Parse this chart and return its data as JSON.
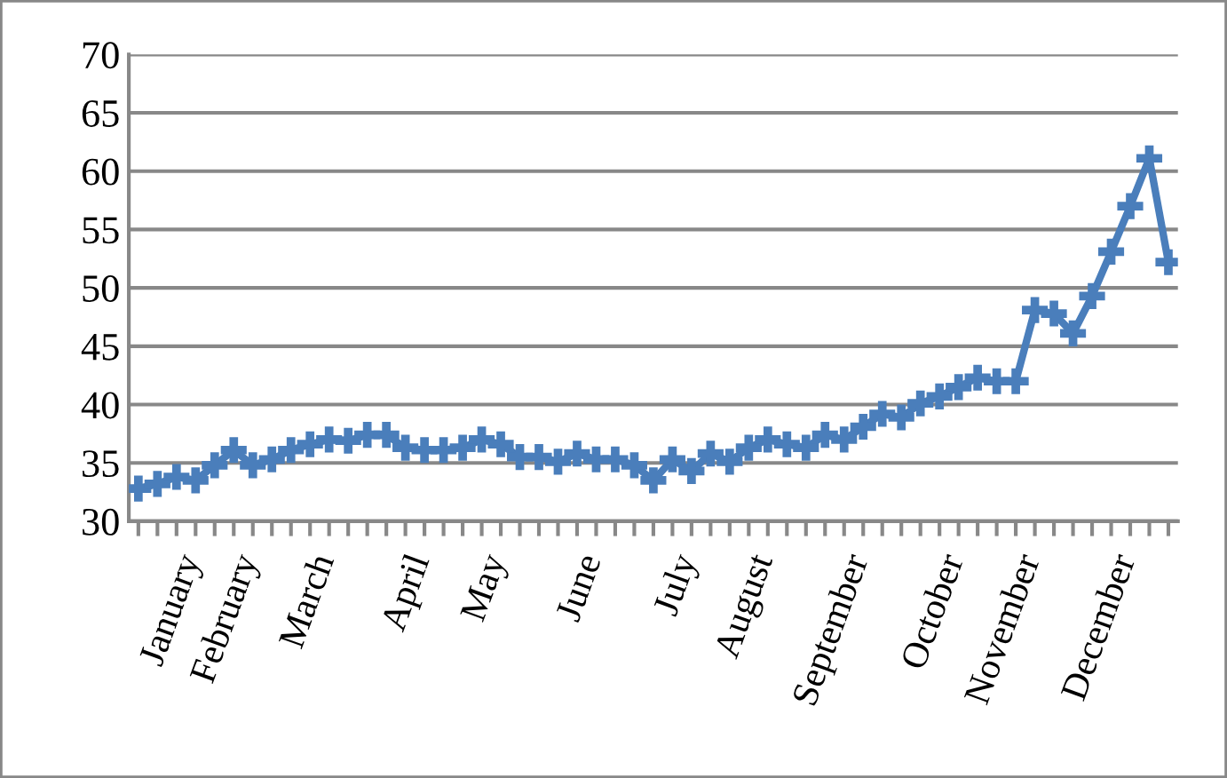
{
  "chart_data": {
    "type": "line",
    "categories": [
      null,
      null,
      "January",
      null,
      null,
      "February",
      null,
      null,
      null,
      "March",
      null,
      null,
      null,
      null,
      "April",
      null,
      null,
      null,
      "May",
      null,
      null,
      null,
      null,
      "June",
      null,
      null,
      null,
      null,
      "July",
      null,
      null,
      null,
      "August",
      null,
      null,
      null,
      null,
      "September",
      null,
      null,
      null,
      null,
      "October",
      null,
      null,
      null,
      "November",
      null,
      null,
      null,
      null,
      "December",
      null,
      null,
      null
    ],
    "series": [
      {
        "color": "#4a7ebb",
        "values": [
          32.8,
          33.2,
          33.8,
          33.5,
          34.8,
          36.1,
          34.8,
          35.3,
          36.1,
          36.6,
          37,
          36.9,
          37.4,
          37.4,
          36.3,
          36.1,
          36.1,
          36.3,
          37,
          36.6,
          35.5,
          35.5,
          35.1,
          35.8,
          35.3,
          35.3,
          34.8,
          33.5,
          35.3,
          34.3,
          35.8,
          35.1,
          36.3,
          37,
          36.6,
          36.3,
          37.4,
          37,
          38.1,
          39.2,
          38.9,
          40.1,
          40.7,
          41.5,
          42.3,
          42,
          42,
          48.1,
          47.8,
          46.1,
          49.3,
          53.1,
          57,
          61.1,
          52.2
        ]
      }
    ],
    "ylim": [
      30,
      70
    ],
    "yticks": [
      30,
      35,
      40,
      45,
      50,
      55,
      60,
      65,
      70
    ],
    "grid": "y",
    "legend": false,
    "marker": "cross",
    "line_style": "solid"
  }
}
